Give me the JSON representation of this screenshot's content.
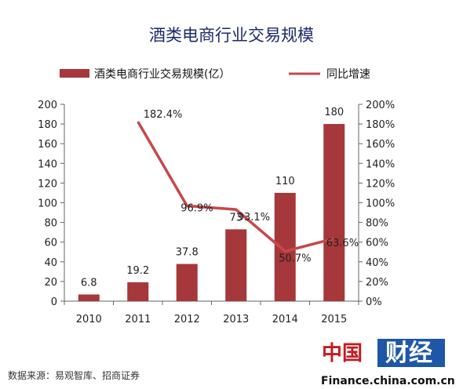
{
  "chart_data": {
    "type": "bar",
    "title": "酒类电商行业交易规模",
    "categories": [
      "2010",
      "2011",
      "2012",
      "2013",
      "2014",
      "2015"
    ],
    "series": [
      {
        "name": "酒类电商行业交易规模(亿）",
        "type": "bar",
        "axis": "left",
        "values": [
          6.8,
          19.2,
          37.8,
          73,
          110,
          180
        ],
        "labels": [
          "6.8",
          "19.2",
          "37.8",
          "73",
          "110",
          "180"
        ]
      },
      {
        "name": "同比增速",
        "type": "line",
        "axis": "right",
        "values": [
          null,
          182.4,
          96.9,
          93.1,
          50.7,
          63.6
        ],
        "labels": [
          "",
          "182.4%",
          "96.9%",
          "93.1%",
          "50.7%",
          "63.6%"
        ]
      }
    ],
    "y_left": {
      "min": 0,
      "max": 200,
      "ticks": [
        "0",
        "20",
        "40",
        "60",
        "80",
        "100",
        "120",
        "140",
        "160",
        "180",
        "200"
      ]
    },
    "y_right": {
      "min": 0,
      "max": 200,
      "ticks": [
        "0%",
        "20%",
        "40%",
        "60%",
        "80%",
        "100%",
        "120%",
        "140%",
        "160%",
        "180%",
        "200%"
      ]
    },
    "legend_position": "top",
    "grid": false,
    "colors": {
      "bar": "#a6373a",
      "line": "#c8474a",
      "title": "#1d2a6b"
    }
  },
  "source": "数据来源：易观智库、招商证券",
  "watermark": {
    "china_char": "中国",
    "brand": "财经",
    "url": "Finance.china.com.cn"
  }
}
